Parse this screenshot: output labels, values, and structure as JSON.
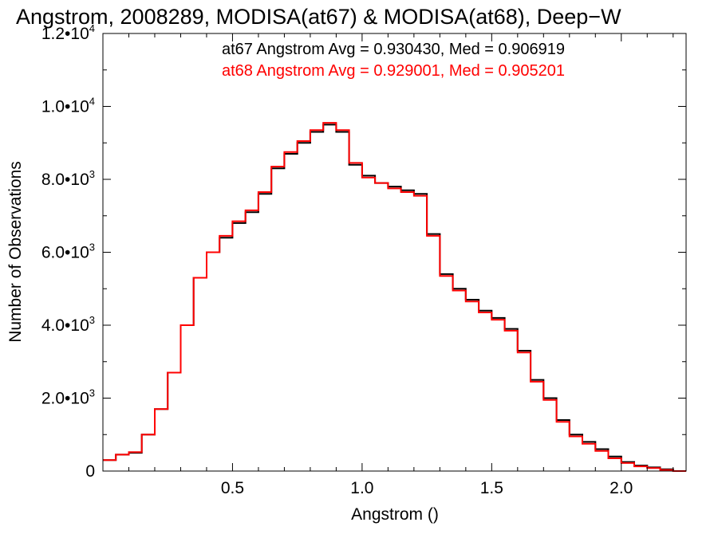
{
  "chart_data": {
    "type": "line",
    "title": "Angstrom, 2008289, MODISA(at67) & MODISA(at68), Deep−W",
    "xlabel": "Angstrom ()",
    "ylabel": "Number of Observations",
    "xlim": [
      0.0,
      2.25
    ],
    "ylim": [
      0,
      12000
    ],
    "x_ticks": [
      {
        "value": 0.5,
        "label": "0.5"
      },
      {
        "value": 1.0,
        "label": "1.0"
      },
      {
        "value": 1.5,
        "label": "1.5"
      },
      {
        "value": 2.0,
        "label": "2.0"
      }
    ],
    "y_ticks": [
      {
        "value": 0,
        "mant": "0",
        "exp": ""
      },
      {
        "value": 2000,
        "mant": "2.0•10",
        "exp": "3"
      },
      {
        "value": 4000,
        "mant": "4.0•10",
        "exp": "3"
      },
      {
        "value": 6000,
        "mant": "6.0•10",
        "exp": "3"
      },
      {
        "value": 8000,
        "mant": "8.0•10",
        "exp": "3"
      },
      {
        "value": 10000,
        "mant": "1.0•10",
        "exp": "4"
      },
      {
        "value": 12000,
        "mant": "1.2•10",
        "exp": "4"
      }
    ],
    "grid": false,
    "legend_position": "top-right",
    "annotations": [
      {
        "text": "at67 Angstrom Avg = 0.930430, Med = 0.906919",
        "color": "#000000"
      },
      {
        "text": "at68 Angstrom Avg = 0.929001, Med = 0.905201",
        "color": "#ff0000"
      }
    ],
    "series": [
      {
        "color": "#000000",
        "step": true,
        "x": [
          0.0,
          0.05,
          0.1,
          0.15,
          0.2,
          0.25,
          0.3,
          0.35,
          0.4,
          0.45,
          0.5,
          0.55,
          0.6,
          0.65,
          0.7,
          0.75,
          0.8,
          0.85,
          0.9,
          0.95,
          1.0,
          1.05,
          1.1,
          1.15,
          1.2,
          1.25,
          1.3,
          1.35,
          1.4,
          1.45,
          1.5,
          1.55,
          1.6,
          1.65,
          1.7,
          1.75,
          1.8,
          1.85,
          1.9,
          1.95,
          2.0,
          2.05,
          2.1,
          2.15,
          2.2,
          2.25
        ],
        "y": [
          300,
          450,
          500,
          1000,
          1700,
          2700,
          4000,
          5300,
          6000,
          6400,
          6800,
          7100,
          7600,
          8300,
          8700,
          9000,
          9300,
          9500,
          9300,
          8400,
          8100,
          7900,
          7800,
          7700,
          7600,
          6500,
          5400,
          5000,
          4700,
          4400,
          4200,
          3900,
          3300,
          2500,
          2000,
          1400,
          1000,
          800,
          600,
          400,
          250,
          150,
          100,
          50,
          0,
          0
        ]
      },
      {
        "color": "#ff0000",
        "step": true,
        "x": [
          0.0,
          0.05,
          0.1,
          0.15,
          0.2,
          0.25,
          0.3,
          0.35,
          0.4,
          0.45,
          0.5,
          0.55,
          0.6,
          0.65,
          0.7,
          0.75,
          0.8,
          0.85,
          0.9,
          0.95,
          1.0,
          1.05,
          1.1,
          1.15,
          1.2,
          1.25,
          1.3,
          1.35,
          1.4,
          1.45,
          1.5,
          1.55,
          1.6,
          1.65,
          1.7,
          1.75,
          1.8,
          1.85,
          1.9,
          1.95,
          2.0,
          2.05,
          2.1,
          2.15,
          2.2,
          2.25
        ],
        "y": [
          300,
          450,
          520,
          1000,
          1700,
          2700,
          4000,
          5300,
          6000,
          6450,
          6850,
          7150,
          7650,
          8350,
          8750,
          9050,
          9350,
          9550,
          9350,
          8450,
          8050,
          7900,
          7750,
          7650,
          7550,
          6450,
          5350,
          4950,
          4650,
          4350,
          4150,
          3850,
          3250,
          2450,
          1950,
          1350,
          950,
          750,
          550,
          350,
          220,
          130,
          80,
          30,
          0,
          0
        ]
      }
    ]
  }
}
